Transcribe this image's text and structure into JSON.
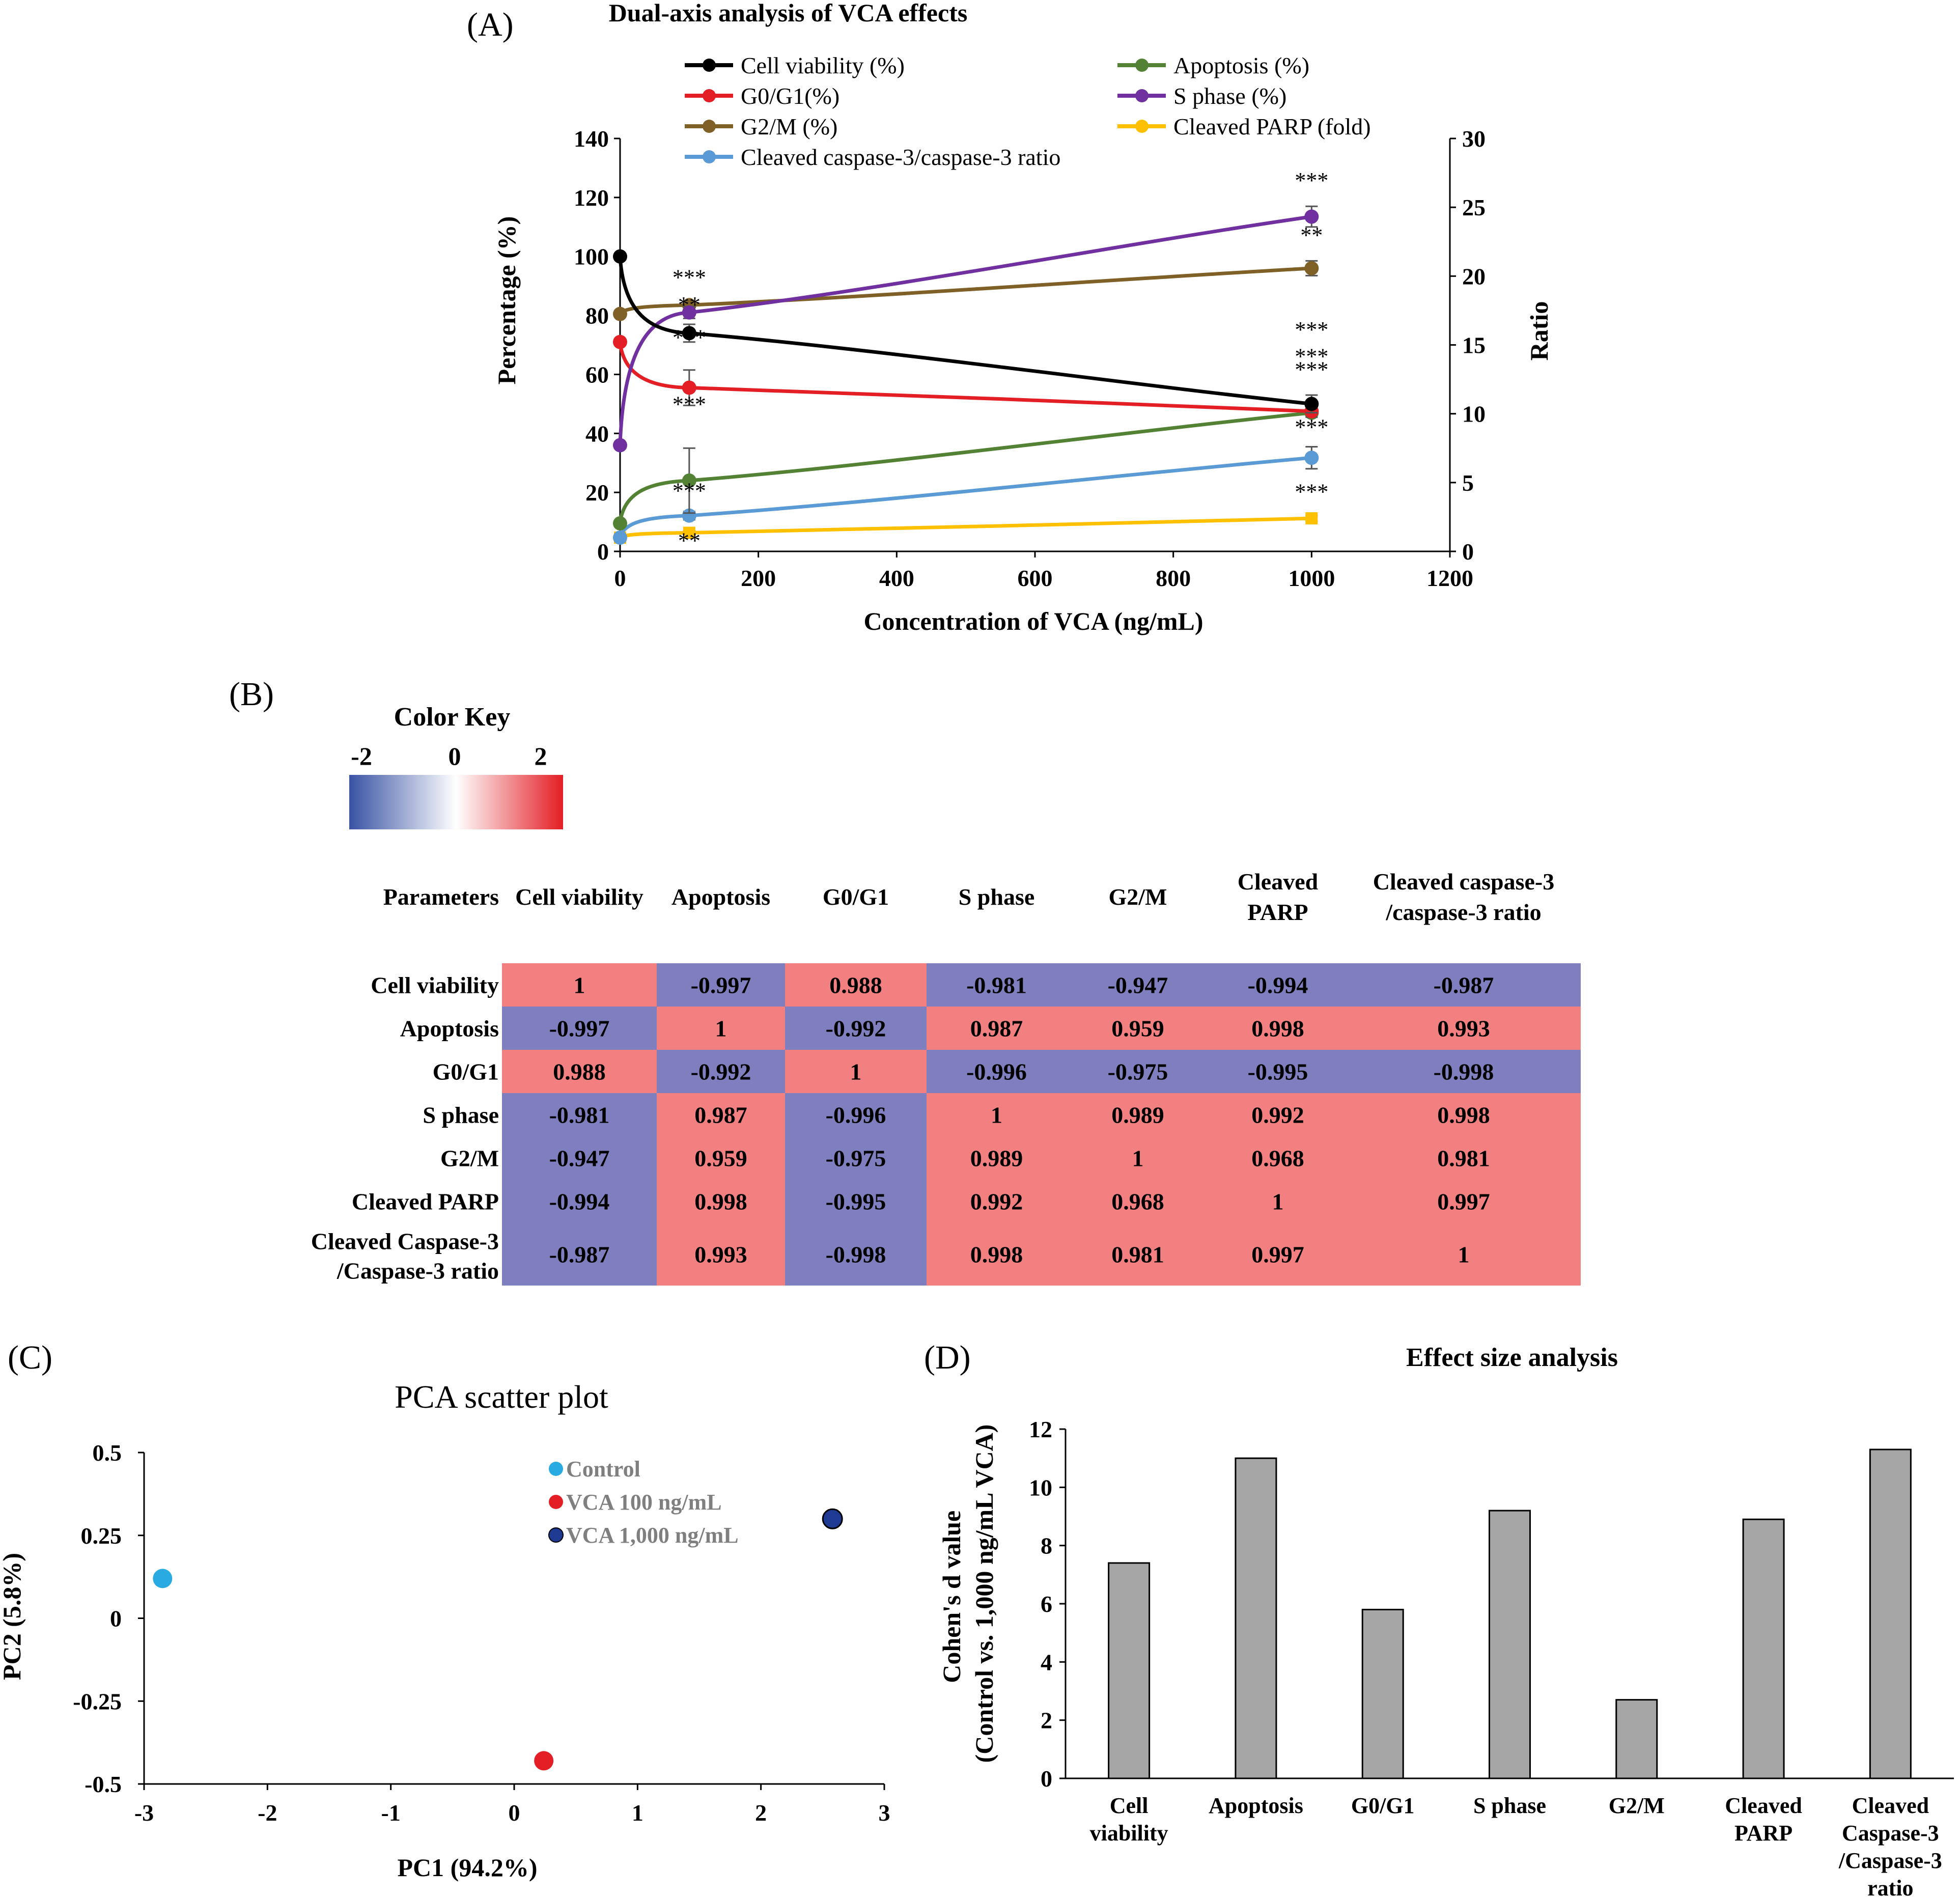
{
  "panel_labels": [
    "(A)",
    "(B)",
    "(C)",
    "(D)"
  ],
  "colors": {
    "cell_viability": "#000000",
    "apoptosis": "#548235",
    "g0g1": "#e31e24",
    "s_phase": "#7030a0",
    "g2m": "#7f6026",
    "cleaved_parp": "#ffc000",
    "caspase_ratio": "#5b9bd5",
    "heat_pos": "#f28080",
    "heat_neg": "#7f7fbf",
    "bar_fill": "#a6a6a6",
    "pca_control": "#29abe2",
    "pca_vca100": "#e31e24",
    "pca_vca1000": "#1f3a93"
  },
  "chart_data": [
    {
      "id": "A",
      "type": "line",
      "title": "Dual-axis analysis of VCA effects",
      "xlabel": "Concentration of VCA (ng/mL)",
      "ylabel": "Percentage (%)",
      "y2label": "Ratio",
      "xlim": [
        0,
        1200
      ],
      "ylim": [
        0,
        140
      ],
      "y2lim": [
        0,
        30
      ],
      "xticks": [
        "0",
        "200",
        "400",
        "600",
        "800",
        "1000",
        "1200"
      ],
      "yticks": [
        "0",
        "20",
        "40",
        "60",
        "80",
        "100",
        "120",
        "140"
      ],
      "y2ticks": [
        "0",
        "5",
        "10",
        "15",
        "20",
        "25",
        "30"
      ],
      "x": [
        0,
        100,
        1000
      ],
      "series": [
        {
          "key": "cell_viability",
          "name": "Cell viability (%)",
          "axis": "left",
          "marker": "circle",
          "values": [
            100,
            74,
            50
          ],
          "err": [
            0,
            3,
            3
          ],
          "sig": [
            "",
            "**",
            "***"
          ]
        },
        {
          "key": "apoptosis",
          "name": "Apoptosis (%)",
          "axis": "left",
          "marker": "circle",
          "values": [
            9.5,
            24,
            47
          ],
          "err": [
            0,
            11,
            0
          ],
          "sig": [
            "",
            "***",
            "***"
          ]
        },
        {
          "key": "g0g1",
          "name": "G0/G1(%)",
          "axis": "left",
          "marker": "circle",
          "values": [
            71,
            55.5,
            47.5
          ],
          "err": [
            0,
            6,
            2
          ],
          "sig": [
            "",
            "***",
            "***"
          ]
        },
        {
          "key": "s_phase",
          "name": "S phase (%)",
          "axis": "left",
          "marker": "circle",
          "values": [
            36,
            81,
            113.5
          ],
          "err": [
            0,
            2,
            3.5
          ],
          "sig": [
            "",
            "",
            "***"
          ]
        },
        {
          "key": "g2m",
          "name": "G2/M (%)",
          "axis": "left",
          "marker": "circle",
          "values": [
            80.5,
            83.5,
            96
          ],
          "err": [
            0,
            1,
            2.5
          ],
          "sig": [
            "",
            "***",
            "**"
          ]
        },
        {
          "key": "cleaved_parp",
          "name": "Cleaved PARP (fold)",
          "axis": "right",
          "marker": "square",
          "values": [
            1.0,
            1.35,
            2.4
          ],
          "err": [
            0,
            0.15,
            0.2
          ],
          "sig": [
            "",
            "**",
            "***"
          ]
        },
        {
          "key": "caspase_ratio",
          "name": "Cleaved caspase-3/caspase-3 ratio",
          "axis": "right",
          "marker": "circle",
          "values": [
            1.0,
            2.6,
            6.8
          ],
          "err": [
            0,
            0.3,
            0.8
          ],
          "sig": [
            "",
            "***",
            "***"
          ]
        }
      ]
    },
    {
      "id": "B",
      "type": "heatmap",
      "color_key_title": "Color Key",
      "color_key_ticks": [
        "-2",
        "0",
        "2"
      ],
      "corner_label": "Parameters",
      "columns": [
        "Cell viability",
        "Apoptosis",
        "G0/G1",
        "S phase",
        "G2/M",
        "Cleaved PARP",
        "Cleaved caspase-3 /caspase-3 ratio"
      ],
      "rows": [
        "Cell viability",
        "Apoptosis",
        "G0/G1",
        "S phase",
        "G2/M",
        "Cleaved PARP",
        "Cleaved Caspase-3 /Caspase-3 ratio"
      ],
      "values": [
        [
          "1",
          "-0.997",
          "0.988",
          "-0.981",
          "-0.947",
          "-0.994",
          "-0.987"
        ],
        [
          "-0.997",
          "1",
          "-0.992",
          "0.987",
          "0.959",
          "0.998",
          "0.993"
        ],
        [
          "0.988",
          "-0.992",
          "1",
          "-0.996",
          "-0.975",
          "-0.995",
          "-0.998"
        ],
        [
          "-0.981",
          "0.987",
          "-0.996",
          "1",
          "0.989",
          "0.992",
          "0.998"
        ],
        [
          "-0.947",
          "0.959",
          "-0.975",
          "0.989",
          "1",
          "0.968",
          "0.981"
        ],
        [
          "-0.994",
          "0.998",
          "-0.995",
          "0.992",
          "0.968",
          "1",
          "0.997"
        ],
        [
          "-0.987",
          "0.993",
          "-0.998",
          "0.998",
          "0.981",
          "0.997",
          "1"
        ]
      ]
    },
    {
      "id": "C",
      "type": "scatter",
      "title": "PCA scatter plot",
      "xlabel": "PC1 (94.2%)",
      "ylabel": "PC2 (5.8%)",
      "xlim": [
        -3,
        3
      ],
      "ylim": [
        -0.5,
        0.5
      ],
      "xticks": [
        "-3",
        "-2",
        "-1",
        "0",
        "1",
        "2",
        "3"
      ],
      "yticks": [
        "-0.5",
        "-0.25",
        "0",
        "0.25",
        "0.5"
      ],
      "points": [
        {
          "key": "pca_control",
          "name": "Control",
          "x": -2.85,
          "y": 0.12
        },
        {
          "key": "pca_vca100",
          "name": "VCA 100 ng/mL",
          "x": 0.24,
          "y": -0.43
        },
        {
          "key": "pca_vca1000",
          "name": "VCA 1,000 ng/mL",
          "x": 2.58,
          "y": 0.3
        }
      ]
    },
    {
      "id": "D",
      "type": "bar",
      "title": "Effect size analysis",
      "ylabel": "Cohen's d value (Control vs. 1,000 ng/mL VCA)",
      "ylim": [
        0,
        12
      ],
      "yticks": [
        "0",
        "2",
        "4",
        "6",
        "8",
        "10",
        "12"
      ],
      "categories": [
        "Cell viability",
        "Apoptosis",
        "G0/G1",
        "S phase",
        "G2/M",
        "Cleaved PARP",
        "Cleaved Caspase-3 /Caspase-3 ratio"
      ],
      "values": [
        7.4,
        11.0,
        5.8,
        9.2,
        2.7,
        8.9,
        11.3
      ]
    }
  ]
}
